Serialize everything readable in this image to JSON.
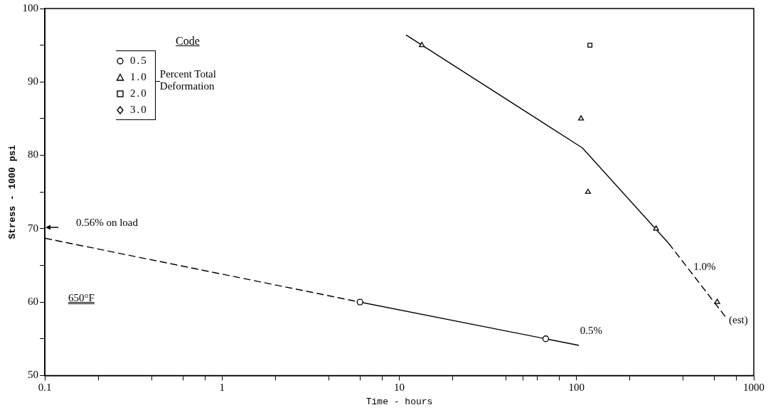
{
  "chart_data": {
    "type": "scatter",
    "xlabel": "Time - hours",
    "ylabel": "Stress - 1000 psi",
    "legend_title": "Code",
    "legend": "top left",
    "grid": false,
    "log": "x",
    "xlim": [
      0.1,
      1000
    ],
    "ylim": [
      50,
      100
    ],
    "xticks": [
      0.1,
      {
        "value": 0.2,
        "label": null
      },
      {
        "value": 0.4,
        "label": null
      },
      {
        "value": 0.6,
        "label": null
      },
      {
        "value": 0.8,
        "label": null
      },
      1,
      {
        "value": 2,
        "label": null
      },
      {
        "value": 4,
        "label": null
      },
      {
        "value": 6,
        "label": null
      },
      {
        "value": 8,
        "label": null
      },
      10,
      {
        "value": 20,
        "label": null
      },
      {
        "value": 40,
        "label": null
      },
      {
        "value": 50,
        "label": null
      },
      {
        "value": 60,
        "label": null
      },
      {
        "value": 80,
        "label": null
      },
      100,
      {
        "value": 200,
        "label": null
      },
      {
        "value": 400,
        "label": null
      },
      {
        "value": 600,
        "label": null
      },
      {
        "value": 800,
        "label": null
      },
      1000
    ],
    "yticks": [
      50,
      {
        "value": 55,
        "label": null
      },
      60,
      {
        "value": 65,
        "label": null
      },
      70,
      {
        "value": 75,
        "label": null
      },
      80,
      {
        "value": 85,
        "label": null
      },
      90,
      {
        "value": 95,
        "label": null
      },
      100
    ],
    "series": [
      {
        "name": "0.5",
        "marker": "circle",
        "color": "#000000",
        "x": [
          6,
          67
        ],
        "values": [
          60,
          55
        ]
      },
      {
        "name": "1.0",
        "marker": "triangle",
        "color": "#000000",
        "x": [
          13.4,
          106,
          116,
          281,
          622
        ],
        "values": [
          95,
          85,
          75,
          70,
          60
        ]
      },
      {
        "name": "2.0",
        "marker": "square",
        "color": "#000000",
        "x": [
          119
        ],
        "values": [
          95
        ]
      },
      {
        "name": "3.0",
        "marker": "diamond",
        "color": "#000000"
      },
      {
        "type": "line",
        "line_style": "dashed",
        "color": "#000000",
        "x": [
          0.1,
          6
        ],
        "values": [
          68.7,
          60
        ]
      },
      {
        "type": "line",
        "line_style": "solid",
        "color": "#000000",
        "x": [
          6,
          103
        ],
        "values": [
          60,
          54.1
        ]
      },
      {
        "type": "line",
        "line_style": "solid",
        "color": "#000000",
        "x": [
          10.9,
          108,
          331
        ],
        "values": [
          96.4,
          81,
          68
        ]
      },
      {
        "type": "line",
        "line_style": "dashed",
        "color": "#000000",
        "x": [
          331,
          692
        ],
        "values": [
          68,
          58
        ]
      }
    ],
    "annotations": [
      "Percent Total Deformation",
      "650°F",
      "0.56% on load",
      "1.0%",
      "0.5%",
      "(est)"
    ]
  }
}
